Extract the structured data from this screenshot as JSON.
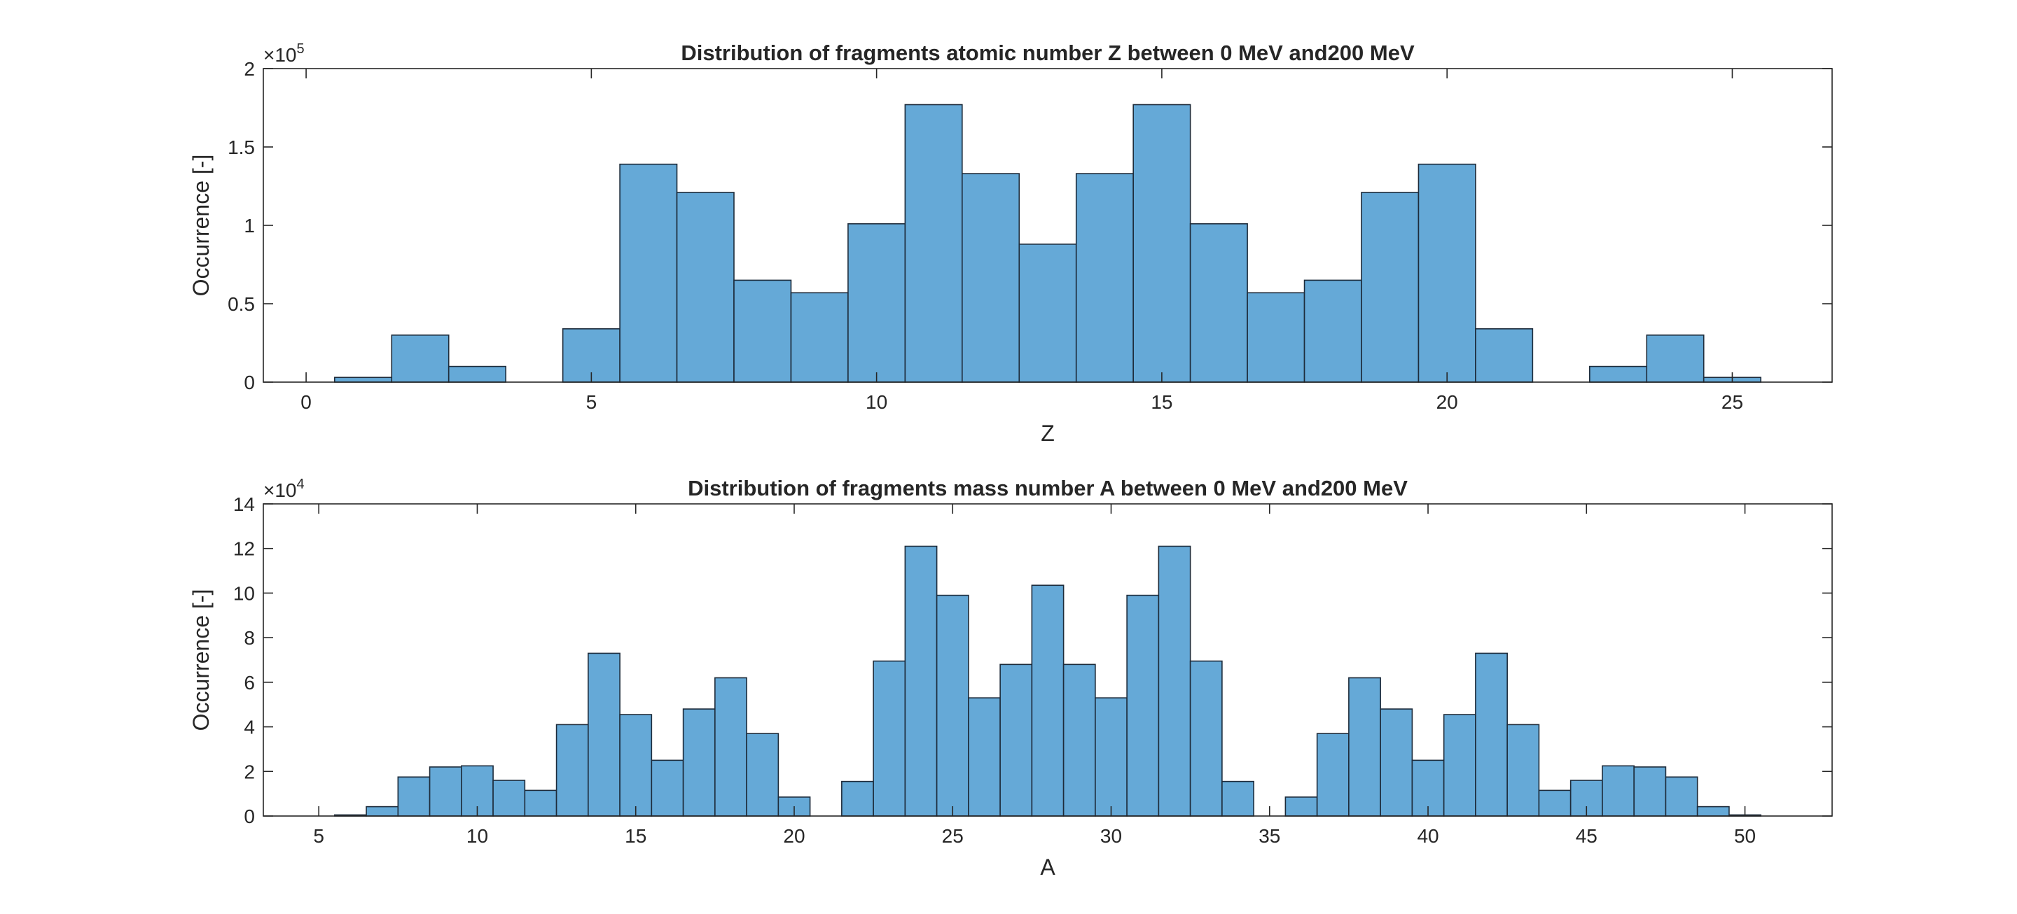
{
  "chart_data": [
    {
      "type": "bar",
      "title": "Distribution of fragments atomic number Z between 0 MeV and200 MeV",
      "xlabel": "Z",
      "ylabel": "Occurrence [-]",
      "y_exponent_label": "×10",
      "y_exponent_power": "5",
      "xlim": [
        -0.75,
        26.75
      ],
      "ylim": [
        0,
        200000
      ],
      "x_ticks": [
        0,
        5,
        10,
        15,
        20,
        25
      ],
      "x_tick_labels": [
        "0",
        "5",
        "10",
        "15",
        "20",
        "25"
      ],
      "y_ticks": [
        0,
        50000,
        100000,
        150000,
        200000
      ],
      "y_tick_labels": [
        "0",
        "0.5",
        "1",
        "1.5",
        "2"
      ],
      "categories": [
        1,
        2,
        3,
        5,
        6,
        7,
        8,
        9,
        10,
        11,
        12,
        13,
        14,
        15,
        16,
        17,
        18,
        19,
        20,
        21,
        23,
        24,
        25
      ],
      "values": [
        3000,
        30000,
        10000,
        34000,
        139000,
        121000,
        65000,
        57000,
        101000,
        177000,
        133000,
        88000,
        133000,
        177000,
        101000,
        57000,
        65000,
        121000,
        139000,
        34000,
        10000,
        30000,
        3000
      ],
      "bar_width": 1,
      "grid": false,
      "color": "#65a9d7",
      "edge_color": "#1d2b3a"
    },
    {
      "type": "bar",
      "title": "Distribution of fragments mass number A between 0 MeV and200 MeV",
      "xlabel": "A",
      "ylabel": "Occurrence [-]",
      "y_exponent_label": "×10",
      "y_exponent_power": "4",
      "xlim": [
        3.25,
        52.75
      ],
      "ylim": [
        0,
        140000
      ],
      "x_ticks": [
        5,
        10,
        15,
        20,
        25,
        30,
        35,
        40,
        45,
        50
      ],
      "x_tick_labels": [
        "5",
        "10",
        "15",
        "20",
        "25",
        "30",
        "35",
        "40",
        "45",
        "50"
      ],
      "y_ticks": [
        0,
        20000,
        40000,
        60000,
        80000,
        100000,
        120000,
        140000
      ],
      "y_tick_labels": [
        "0",
        "2",
        "4",
        "6",
        "8",
        "10",
        "12",
        "14"
      ],
      "categories": [
        6,
        7,
        8,
        9,
        10,
        11,
        12,
        13,
        14,
        15,
        16,
        17,
        18,
        19,
        20,
        22,
        23,
        24,
        25,
        26,
        27,
        28,
        29,
        30,
        31,
        32,
        33,
        34,
        36,
        37,
        38,
        39,
        40,
        41,
        42,
        43,
        44,
        45,
        46,
        47,
        48,
        49,
        50
      ],
      "values": [
        500,
        4200,
        17500,
        22000,
        22500,
        16000,
        11500,
        41000,
        73000,
        45500,
        25000,
        48000,
        62000,
        37000,
        8500,
        15500,
        69500,
        121000,
        99000,
        53000,
        68000,
        103500,
        68000,
        53000,
        99000,
        121000,
        69500,
        15500,
        8500,
        37000,
        62000,
        48000,
        25000,
        45500,
        73000,
        41000,
        11500,
        16000,
        22500,
        22000,
        17500,
        4200,
        500
      ],
      "bar_width": 1,
      "grid": false,
      "color": "#65a9d7",
      "edge_color": "#1d2b3a"
    }
  ]
}
